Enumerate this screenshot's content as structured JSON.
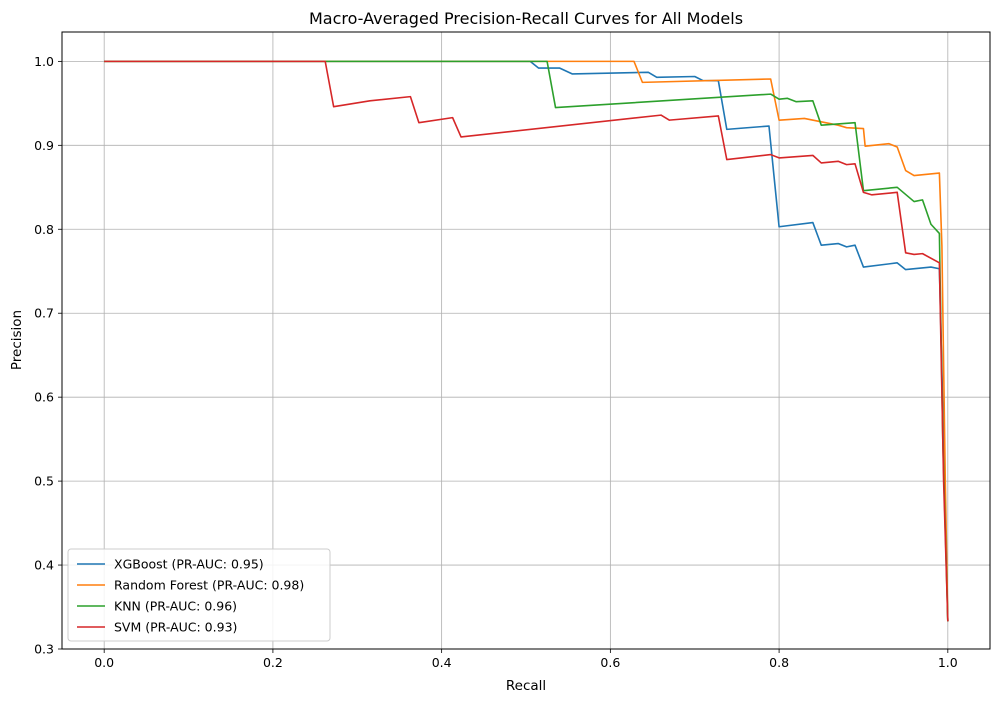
{
  "chart_data": {
    "type": "line",
    "title": "Macro-Averaged Precision-Recall Curves for All Models",
    "xlabel": "Recall",
    "ylabel": "Precision",
    "xlim": [
      -0.05,
      1.05
    ],
    "ylim": [
      0.3,
      1.035
    ],
    "xticks": [
      0.0,
      0.2,
      0.4,
      0.6,
      0.8,
      1.0
    ],
    "xtick_labels": [
      "0.0",
      "0.2",
      "0.4",
      "0.6",
      "0.8",
      "1.0"
    ],
    "yticks": [
      0.3,
      0.4,
      0.5,
      0.6,
      0.7,
      0.8,
      0.9,
      1.0
    ],
    "ytick_labels": [
      "0.3",
      "0.4",
      "0.5",
      "0.6",
      "0.7",
      "0.8",
      "0.9",
      "1.0"
    ],
    "grid": true,
    "legend_position": "lower-left",
    "series": [
      {
        "name": "XGBoost (PR-AUC: 0.95)",
        "color": "#1f77b4",
        "points": [
          [
            0.0,
            1.0
          ],
          [
            0.505,
            1.0
          ],
          [
            0.515,
            0.992
          ],
          [
            0.54,
            0.992
          ],
          [
            0.555,
            0.985
          ],
          [
            0.645,
            0.987
          ],
          [
            0.655,
            0.981
          ],
          [
            0.7,
            0.982
          ],
          [
            0.71,
            0.977
          ],
          [
            0.728,
            0.977
          ],
          [
            0.738,
            0.919
          ],
          [
            0.788,
            0.923
          ],
          [
            0.8,
            0.803
          ],
          [
            0.84,
            0.808
          ],
          [
            0.85,
            0.781
          ],
          [
            0.87,
            0.783
          ],
          [
            0.88,
            0.779
          ],
          [
            0.89,
            0.781
          ],
          [
            0.9,
            0.755
          ],
          [
            0.94,
            0.76
          ],
          [
            0.95,
            0.752
          ],
          [
            0.98,
            0.755
          ],
          [
            0.99,
            0.753
          ],
          [
            0.995,
            0.55
          ],
          [
            1.0,
            0.333
          ]
        ]
      },
      {
        "name": "Random Forest (PR-AUC: 0.98)",
        "color": "#ff7f0e",
        "points": [
          [
            0.0,
            1.0
          ],
          [
            0.628,
            1.0
          ],
          [
            0.638,
            0.975
          ],
          [
            0.79,
            0.979
          ],
          [
            0.8,
            0.93
          ],
          [
            0.83,
            0.932
          ],
          [
            0.85,
            0.928
          ],
          [
            0.87,
            0.924
          ],
          [
            0.88,
            0.921
          ],
          [
            0.9,
            0.92
          ],
          [
            0.902,
            0.899
          ],
          [
            0.93,
            0.902
          ],
          [
            0.94,
            0.898
          ],
          [
            0.95,
            0.87
          ],
          [
            0.96,
            0.864
          ],
          [
            0.99,
            0.867
          ],
          [
            0.993,
            0.78
          ],
          [
            0.997,
            0.5
          ],
          [
            1.0,
            0.333
          ]
        ]
      },
      {
        "name": "KNN (PR-AUC: 0.96)",
        "color": "#2ca02c",
        "points": [
          [
            0.0,
            1.0
          ],
          [
            0.525,
            1.0
          ],
          [
            0.535,
            0.945
          ],
          [
            0.79,
            0.961
          ],
          [
            0.8,
            0.955
          ],
          [
            0.81,
            0.956
          ],
          [
            0.82,
            0.952
          ],
          [
            0.84,
            0.953
          ],
          [
            0.85,
            0.924
          ],
          [
            0.89,
            0.927
          ],
          [
            0.9,
            0.846
          ],
          [
            0.94,
            0.85
          ],
          [
            0.96,
            0.833
          ],
          [
            0.97,
            0.835
          ],
          [
            0.98,
            0.806
          ],
          [
            0.99,
            0.795
          ],
          [
            0.994,
            0.55
          ],
          [
            1.0,
            0.333
          ]
        ]
      },
      {
        "name": "SVM (PR-AUC: 0.93)",
        "color": "#d62728",
        "points": [
          [
            0.0,
            1.0
          ],
          [
            0.262,
            1.0
          ],
          [
            0.272,
            0.946
          ],
          [
            0.315,
            0.953
          ],
          [
            0.363,
            0.958
          ],
          [
            0.373,
            0.927
          ],
          [
            0.413,
            0.933
          ],
          [
            0.423,
            0.91
          ],
          [
            0.66,
            0.936
          ],
          [
            0.67,
            0.93
          ],
          [
            0.728,
            0.935
          ],
          [
            0.738,
            0.883
          ],
          [
            0.79,
            0.889
          ],
          [
            0.8,
            0.885
          ],
          [
            0.84,
            0.888
          ],
          [
            0.85,
            0.879
          ],
          [
            0.87,
            0.881
          ],
          [
            0.88,
            0.877
          ],
          [
            0.89,
            0.878
          ],
          [
            0.9,
            0.844
          ],
          [
            0.91,
            0.841
          ],
          [
            0.94,
            0.844
          ],
          [
            0.95,
            0.772
          ],
          [
            0.96,
            0.77
          ],
          [
            0.97,
            0.771
          ],
          [
            0.99,
            0.76
          ],
          [
            0.995,
            0.5
          ],
          [
            1.0,
            0.333
          ]
        ]
      }
    ]
  }
}
